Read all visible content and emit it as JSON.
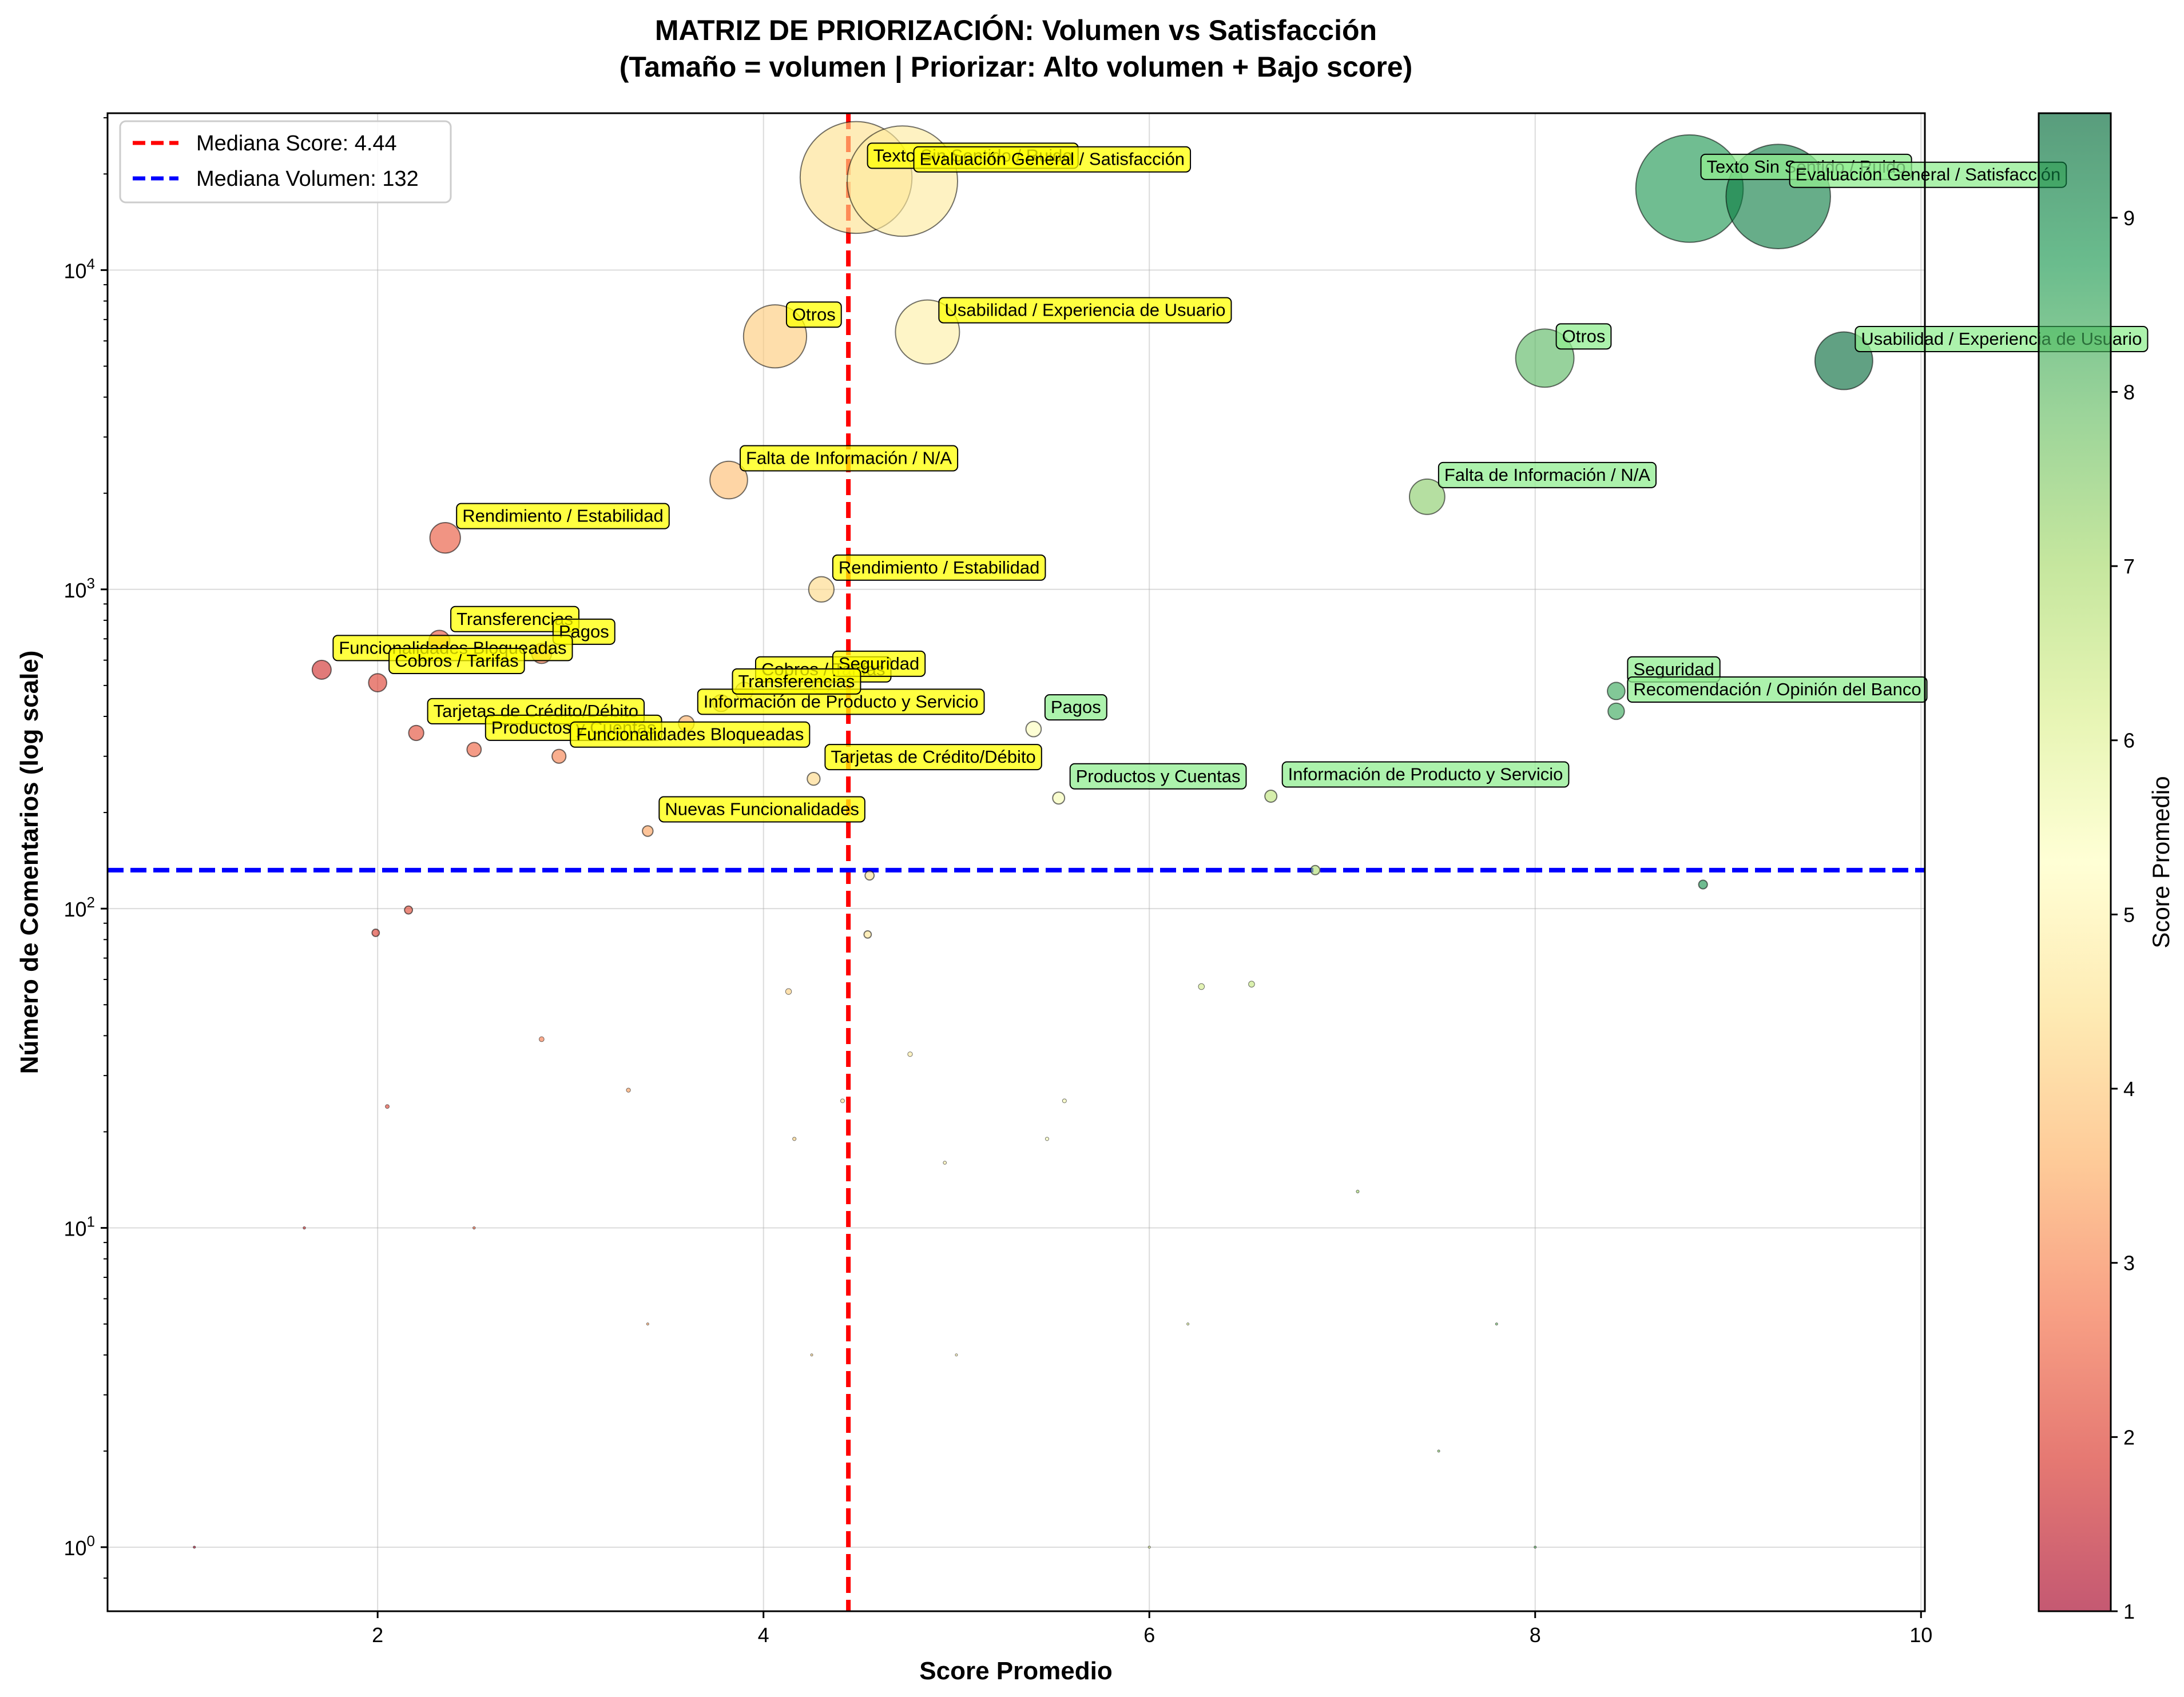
{
  "chart_data": {
    "type": "scatter",
    "title": "MATRIZ DE PRIORIZACIÓN: Volumen vs Satisfacción",
    "subtitle": "(Tamaño = volumen | Priorizar: Alto volumen + Bajo score)",
    "xlabel": "Score Promedio",
    "ylabel": "Número de Comentarios (log scale)",
    "xlim": [
      0.6,
      10.02
    ],
    "ylim": [
      0.63,
      31000
    ],
    "y_scale": "log",
    "grid": true,
    "xticks": [
      {
        "value": 2,
        "label": "2"
      },
      {
        "value": 4,
        "label": "4"
      },
      {
        "value": 6,
        "label": "6"
      },
      {
        "value": 8,
        "label": "8"
      },
      {
        "value": 10,
        "label": "10"
      }
    ],
    "yticks": [
      {
        "value": 1,
        "base": "10",
        "exp": "0"
      },
      {
        "value": 10,
        "base": "10",
        "exp": "1"
      },
      {
        "value": 100,
        "base": "10",
        "exp": "2"
      },
      {
        "value": 1000,
        "base": "10",
        "exp": "3"
      },
      {
        "value": 10000,
        "base": "10",
        "exp": "4"
      }
    ],
    "reference_lines": [
      {
        "name": "median-score-line",
        "orientation": "vertical",
        "value": 4.44,
        "color": "#ff0000",
        "label": "Mediana Score: 4.44"
      },
      {
        "name": "median-volume-line",
        "orientation": "horizontal",
        "value": 132,
        "color": "#0000ff",
        "label": "Mediana Volumen: 132"
      }
    ],
    "legend": {
      "placement": "top-left"
    },
    "colorbar": {
      "label": "Score Promedio",
      "min": 1,
      "max": 9.6,
      "ticks": [
        "1",
        "2",
        "3",
        "4",
        "5",
        "6",
        "7",
        "8",
        "9"
      ],
      "colormap": [
        "#a50026",
        "#d73027",
        "#f46d43",
        "#fdae61",
        "#fee08b",
        "#ffffbf",
        "#d9ef8b",
        "#a6d96a",
        "#66bd63",
        "#1a9850",
        "#006837"
      ]
    },
    "label_colors": {
      "low": "#ffff00",
      "high": "#90ee90"
    },
    "points": [
      {
        "x": 4.48,
        "y": 19500,
        "label": "Texto Sin Sentido / Ruido",
        "box": "low"
      },
      {
        "x": 4.72,
        "y": 19000,
        "label": "Evaluación General / Satisfacción",
        "box": "low"
      },
      {
        "x": 4.06,
        "y": 6200,
        "label": "Otros",
        "box": "low"
      },
      {
        "x": 4.85,
        "y": 6400,
        "label": "Usabilidad / Experiencia de Usuario",
        "box": "low"
      },
      {
        "x": 3.82,
        "y": 2200,
        "label": "Falta de Información / N/A",
        "box": "low"
      },
      {
        "x": 2.35,
        "y": 1450,
        "label": "Rendimiento / Estabilidad",
        "box": "low"
      },
      {
        "x": 4.3,
        "y": 1000,
        "label": "Rendimiento / Estabilidad",
        "box": "low"
      },
      {
        "x": 2.32,
        "y": 690,
        "label": "Transferencias",
        "box": "low"
      },
      {
        "x": 2.85,
        "y": 630,
        "label": "Pagos",
        "box": "low"
      },
      {
        "x": 1.71,
        "y": 560,
        "label": "Funcionalidades Bloqueadas",
        "box": "low"
      },
      {
        "x": 2.0,
        "y": 510,
        "label": "Cobros / Tarifas",
        "box": "low"
      },
      {
        "x": 3.9,
        "y": 480,
        "label": "Cobros / Tarifas",
        "box": "low"
      },
      {
        "x": 4.3,
        "y": 500,
        "label": "Seguridad",
        "box": "low"
      },
      {
        "x": 3.6,
        "y": 380,
        "label": "Información de Producto y Servicio",
        "box": "low"
      },
      {
        "x": 3.78,
        "y": 440,
        "label": "Transferencias",
        "box": "low"
      },
      {
        "x": 2.2,
        "y": 355,
        "label": "Tarjetas de Crédito/Débito",
        "box": "low"
      },
      {
        "x": 2.5,
        "y": 315,
        "label": "Productos y Cuentas",
        "box": "low"
      },
      {
        "x": 2.94,
        "y": 300,
        "label": "Funcionalidades Bloqueadas",
        "box": "low"
      },
      {
        "x": 4.26,
        "y": 255,
        "label": "Tarjetas de Crédito/Débito",
        "box": "low"
      },
      {
        "x": 3.4,
        "y": 175,
        "label": "Nuevas Funcionalidades",
        "box": "low"
      },
      {
        "x": 5.4,
        "y": 365,
        "label": "Pagos",
        "box": "high"
      },
      {
        "x": 5.53,
        "y": 222,
        "label": "Productos y Cuentas",
        "box": "high"
      },
      {
        "x": 6.63,
        "y": 225,
        "label": "Información de Producto y Servicio",
        "box": "high"
      },
      {
        "x": 8.8,
        "y": 18000,
        "label": "Texto Sin Sentido / Ruido",
        "box": "high"
      },
      {
        "x": 9.26,
        "y": 17000,
        "label": "Evaluación General / Satisfacción",
        "box": "high"
      },
      {
        "x": 8.05,
        "y": 5300,
        "label": "Otros",
        "box": "high"
      },
      {
        "x": 9.6,
        "y": 5200,
        "label": "Usabilidad / Experiencia de Usuario",
        "box": "high"
      },
      {
        "x": 7.44,
        "y": 1950,
        "label": "Falta de Información / N/A",
        "box": "high"
      },
      {
        "x": 8.42,
        "y": 480,
        "label": "Seguridad",
        "box": "high"
      },
      {
        "x": 8.42,
        "y": 415,
        "label": "Recomendación / Opinión del Banco",
        "box": "high"
      },
      {
        "x": 8.87,
        "y": 119
      },
      {
        "x": 4.55,
        "y": 127
      },
      {
        "x": 6.86,
        "y": 132
      },
      {
        "x": 1.99,
        "y": 84
      },
      {
        "x": 2.16,
        "y": 99
      },
      {
        "x": 4.54,
        "y": 83
      },
      {
        "x": 4.13,
        "y": 55
      },
      {
        "x": 6.27,
        "y": 57
      },
      {
        "x": 6.53,
        "y": 58
      },
      {
        "x": 2.85,
        "y": 39
      },
      {
        "x": 3.3,
        "y": 27
      },
      {
        "x": 4.76,
        "y": 35
      },
      {
        "x": 4.41,
        "y": 25
      },
      {
        "x": 5.56,
        "y": 25
      },
      {
        "x": 2.05,
        "y": 24
      },
      {
        "x": 4.16,
        "y": 19
      },
      {
        "x": 5.47,
        "y": 19
      },
      {
        "x": 4.94,
        "y": 16
      },
      {
        "x": 7.08,
        "y": 13
      },
      {
        "x": 1.62,
        "y": 10
      },
      {
        "x": 2.5,
        "y": 10
      },
      {
        "x": 3.4,
        "y": 5
      },
      {
        "x": 6.2,
        "y": 5
      },
      {
        "x": 7.8,
        "y": 5
      },
      {
        "x": 4.25,
        "y": 4
      },
      {
        "x": 5.0,
        "y": 4
      },
      {
        "x": 7.5,
        "y": 2
      },
      {
        "x": 1.05,
        "y": 1
      },
      {
        "x": 6.0,
        "y": 1
      },
      {
        "x": 8.0,
        "y": 1
      }
    ]
  }
}
